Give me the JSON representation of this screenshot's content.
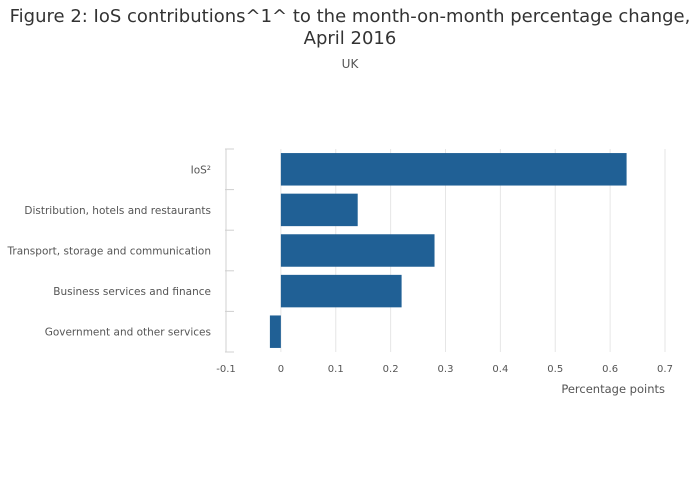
{
  "chart_data": {
    "type": "bar",
    "orientation": "horizontal",
    "title": "Figure 2: IoS contributions^1^ to the month-on-month percentage change, April 2016",
    "title_lines": [
      "Figure 2: IoS contributions^1^ to the month-on-month percentage change,",
      "April 2016"
    ],
    "subtitle": "UK",
    "categories": [
      "IoS²",
      "Distribution, hotels and restaurants",
      "Transport, storage and communication",
      "Business services and finance",
      "Government and other services"
    ],
    "values": [
      0.63,
      0.14,
      0.28,
      0.22,
      -0.02
    ],
    "xlabel": "Percentage points",
    "ylabel": "",
    "xlim": [
      -0.1,
      0.7
    ],
    "xticks": [
      "-0.1",
      "0",
      "0.1",
      "0.2",
      "0.3",
      "0.4",
      "0.5",
      "0.6",
      "0.7"
    ],
    "grid": "vertical",
    "bar_color": "#206095",
    "grid_color": "#e6e6e6",
    "axis_color": "#d0d0d0"
  }
}
